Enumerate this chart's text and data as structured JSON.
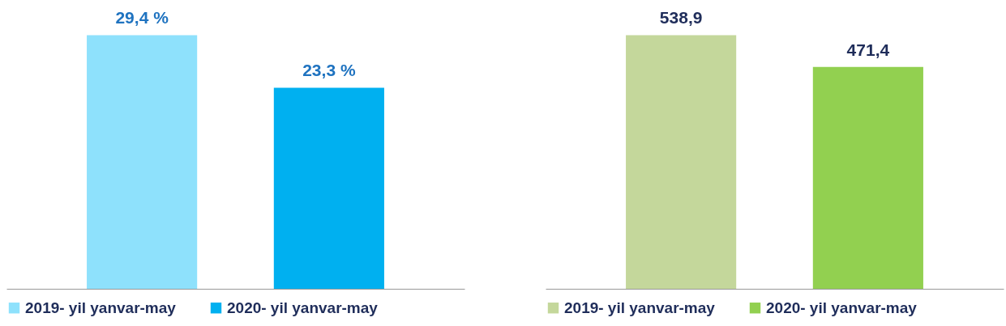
{
  "chart_data": [
    {
      "type": "bar",
      "categories": [
        null
      ],
      "legend": "bottom",
      "series": [
        {
          "name": "2019- yil yanvar-may",
          "color": "#8ee1fc",
          "values": [
            29.4
          ],
          "value_labels": [
            "29,4 %"
          ]
        },
        {
          "name": "2020- yil yanvar-may",
          "color": "#00b0f0",
          "values": [
            23.3
          ],
          "value_labels": [
            "23,3  %"
          ]
        }
      ]
    },
    {
      "type": "bar",
      "categories": [
        null
      ],
      "legend": "bottom",
      "series": [
        {
          "name": "2019- yil yanvar-may",
          "color": "#c4d79b",
          "values": [
            538.9
          ],
          "value_labels": [
            "538,9"
          ]
        },
        {
          "name": "2020- yil yanvar-may",
          "color": "#92d050",
          "values": [
            471.4
          ],
          "value_labels": [
            "471,4"
          ]
        }
      ]
    }
  ]
}
